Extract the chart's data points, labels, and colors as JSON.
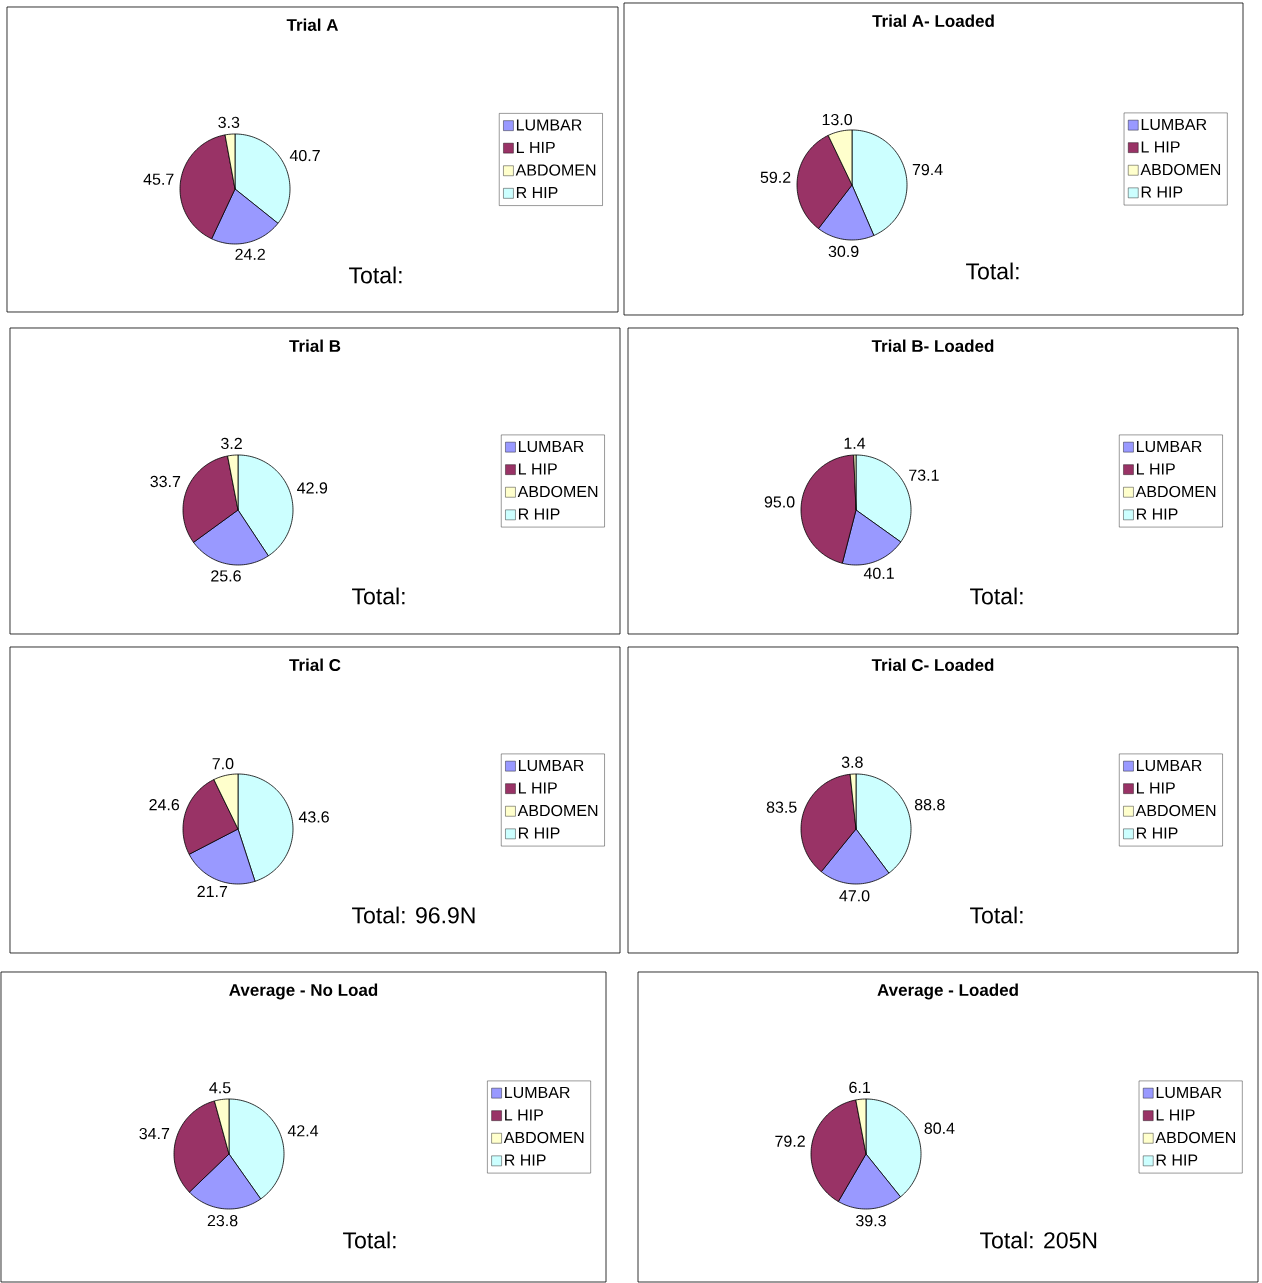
{
  "chart_data": [
    {
      "type": "pie",
      "title": "Trial A",
      "categories": [
        "LUMBAR",
        "L HIP",
        "ABDOMEN",
        "R HIP"
      ],
      "values": [
        24.2,
        45.7,
        3.3,
        40.7
      ],
      "value_labels": [
        "24.2",
        "45.7",
        "3.3",
        "40.7"
      ],
      "colors": [
        "#9999ff",
        "#993366",
        "#ffffcc",
        "#ccffff"
      ],
      "legend": "right",
      "annotations": [
        "Total:"
      ]
    },
    {
      "type": "pie",
      "title": "Trial A- Loaded",
      "categories": [
        "LUMBAR",
        "L HIP",
        "ABDOMEN",
        "R HIP"
      ],
      "values": [
        30.9,
        59.2,
        13.0,
        79.4
      ],
      "value_labels": [
        "30.9",
        "59.2",
        "13.0",
        "79.4"
      ],
      "colors": [
        "#9999ff",
        "#993366",
        "#ffffcc",
        "#ccffff"
      ],
      "legend": "right",
      "annotations": [
        "Total:"
      ]
    },
    {
      "type": "pie",
      "title": "Trial B",
      "categories": [
        "LUMBAR",
        "L HIP",
        "ABDOMEN",
        "R HIP"
      ],
      "values": [
        25.6,
        33.7,
        3.2,
        42.9
      ],
      "value_labels": [
        "25.6",
        "33.7",
        "3.2",
        "42.9"
      ],
      "colors": [
        "#9999ff",
        "#993366",
        "#ffffcc",
        "#ccffff"
      ],
      "legend": "right",
      "annotations": [
        "Total:"
      ]
    },
    {
      "type": "pie",
      "title": "Trial B- Loaded",
      "categories": [
        "LUMBAR",
        "L HIP",
        "ABDOMEN",
        "R HIP"
      ],
      "values": [
        40.1,
        95.0,
        1.4,
        73.1
      ],
      "value_labels": [
        "40.1",
        "95.0",
        "1.4",
        "73.1"
      ],
      "colors": [
        "#9999ff",
        "#993366",
        "#ffffcc",
        "#ccffff"
      ],
      "legend": "right",
      "annotations": [
        "Total:"
      ]
    },
    {
      "type": "pie",
      "title": "Trial C",
      "categories": [
        "LUMBAR",
        "L HIP",
        "ABDOMEN",
        "R HIP"
      ],
      "values": [
        21.7,
        24.6,
        7.0,
        43.6
      ],
      "value_labels": [
        "21.7",
        "24.6",
        "7.0",
        "43.6"
      ],
      "colors": [
        "#9999ff",
        "#993366",
        "#ffffcc",
        "#ccffff"
      ],
      "legend": "right",
      "annotations": [
        "Total: 96.9N"
      ]
    },
    {
      "type": "pie",
      "title": "Trial C- Loaded",
      "categories": [
        "LUMBAR",
        "L HIP",
        "ABDOMEN",
        "R HIP"
      ],
      "values": [
        47.0,
        83.5,
        3.8,
        88.8
      ],
      "value_labels": [
        "47.0",
        "83.5",
        "3.8",
        "88.8"
      ],
      "colors": [
        "#9999ff",
        "#993366",
        "#ffffcc",
        "#ccffff"
      ],
      "legend": "right",
      "annotations": [
        "Total:"
      ]
    },
    {
      "type": "pie",
      "title": "Average - No Load",
      "categories": [
        "LUMBAR",
        "L HIP",
        "ABDOMEN",
        "R HIP"
      ],
      "values": [
        23.8,
        34.7,
        4.5,
        42.4
      ],
      "value_labels": [
        "23.8",
        "34.7",
        "4.5",
        "42.4"
      ],
      "colors": [
        "#9999ff",
        "#993366",
        "#ffffcc",
        "#ccffff"
      ],
      "legend": "right",
      "annotations": [
        "Total:"
      ]
    },
    {
      "type": "pie",
      "title": "Average - Loaded",
      "categories": [
        "LUMBAR",
        "L HIP",
        "ABDOMEN",
        "R HIP"
      ],
      "values": [
        39.3,
        79.2,
        6.1,
        80.4
      ],
      "value_labels": [
        "39.3",
        "79.2",
        "6.1",
        "80.4"
      ],
      "colors": [
        "#9999ff",
        "#993366",
        "#ffffcc",
        "#ccffff"
      ],
      "legend": "right",
      "annotations": [
        "Total: 205N"
      ]
    }
  ]
}
